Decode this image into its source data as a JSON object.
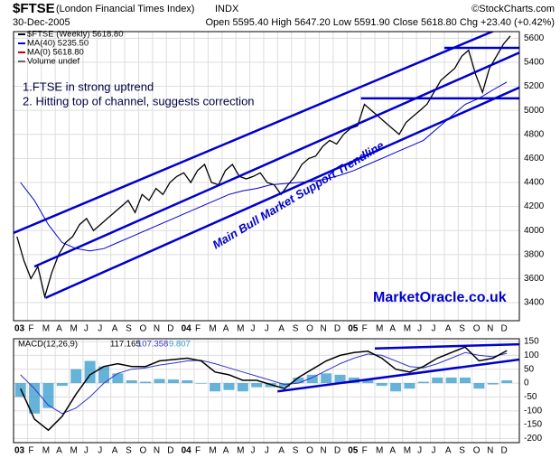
{
  "header": {
    "symbol": "$FTSE",
    "name": "(London Financial Times Index)",
    "exchange": "INDX",
    "copyright": "©StockCharts.com",
    "date": "30-Dec-2005",
    "quote": "Open 5595.40  High 5647.20  Low 5591.90  Close 5618.80  Chg +23.40 (+0.42%)"
  },
  "chart_data": [
    {
      "type": "line",
      "panel": "price",
      "legend": [
        "$FTSE (Weekly) 5618.80",
        "MA(40) 5235.50",
        "MA(0) 5618.80",
        "Volume undef"
      ],
      "annotations": [
        "1.FTSE in strong uptrend",
        "2. Hitting top of channel, suggests correction",
        "Main Bull Market Support Trendline",
        "MarketOracle.co.uk"
      ],
      "xlim": [
        0,
        36.4
      ],
      "ylim": [
        3250,
        5655
      ],
      "yticks": [
        3400,
        3600,
        3800,
        4000,
        4200,
        4400,
        4600,
        4800,
        5000,
        5200,
        5400,
        5600
      ],
      "xticks": [
        {
          "value": 0,
          "label": "03"
        },
        {
          "value": 1,
          "label": "F"
        },
        {
          "value": 2,
          "label": "M"
        },
        {
          "value": 3,
          "label": "A"
        },
        {
          "value": 4,
          "label": "M"
        },
        {
          "value": 5,
          "label": "J"
        },
        {
          "value": 6,
          "label": "J"
        },
        {
          "value": 7,
          "label": "A"
        },
        {
          "value": 8,
          "label": "S"
        },
        {
          "value": 9,
          "label": "O"
        },
        {
          "value": 10,
          "label": "N"
        },
        {
          "value": 11,
          "label": "D"
        },
        {
          "value": 12,
          "label": "04"
        },
        {
          "value": 13,
          "label": "F"
        },
        {
          "value": 14,
          "label": "M"
        },
        {
          "value": 15,
          "label": "A"
        },
        {
          "value": 16,
          "label": "M"
        },
        {
          "value": 17,
          "label": "J"
        },
        {
          "value": 18,
          "label": "J"
        },
        {
          "value": 19,
          "label": "A"
        },
        {
          "value": 20,
          "label": "S"
        },
        {
          "value": 21,
          "label": "O"
        },
        {
          "value": 22,
          "label": "N"
        },
        {
          "value": 23,
          "label": "D"
        },
        {
          "value": 24,
          "label": "05"
        },
        {
          "value": 25,
          "label": "F"
        },
        {
          "value": 26,
          "label": "M"
        },
        {
          "value": 27,
          "label": "A"
        },
        {
          "value": 28,
          "label": "M"
        },
        {
          "value": 29,
          "label": "J"
        },
        {
          "value": 30,
          "label": "J"
        },
        {
          "value": 31,
          "label": "A"
        },
        {
          "value": 32,
          "label": "S"
        },
        {
          "value": 33,
          "label": "O"
        },
        {
          "value": 34,
          "label": "N"
        },
        {
          "value": 35,
          "label": "D"
        }
      ],
      "grid": true,
      "series": [
        {
          "name": "$FTSE",
          "color": "#000000",
          "x": [
            0.25,
            0.75,
            1.25,
            1.75,
            2.25,
            2.75,
            3.25,
            3.75,
            4.25,
            4.75,
            5.25,
            5.75,
            6.25,
            6.75,
            7.25,
            7.75,
            8.25,
            8.75,
            9.25,
            9.75,
            10.25,
            10.75,
            11.25,
            11.75,
            12.25,
            12.75,
            13.25,
            13.75,
            14.25,
            14.75,
            15.25,
            15.75,
            16.25,
            16.75,
            17.25,
            17.75,
            18.25,
            18.75,
            19.25,
            19.75,
            20.25,
            20.75,
            21.25,
            21.75,
            22.25,
            22.75,
            23.25,
            23.75,
            24.25,
            24.75,
            25.25,
            25.75,
            26.25,
            26.75,
            27.25,
            27.75,
            28.25,
            28.75,
            29.25,
            29.75,
            30.25,
            30.75,
            31.25,
            31.75,
            32.25,
            32.75,
            33.25,
            33.75,
            34.25,
            34.75,
            35.25,
            35.75
          ],
          "values": [
            3950,
            3750,
            3600,
            3700,
            3450,
            3650,
            3800,
            3900,
            3950,
            4050,
            4100,
            4000,
            4050,
            4100,
            4150,
            4200,
            4250,
            4150,
            4300,
            4250,
            4350,
            4300,
            4400,
            4450,
            4480,
            4400,
            4500,
            4550,
            4400,
            4380,
            4500,
            4550,
            4450,
            4430,
            4450,
            4480,
            4400,
            4380,
            4300,
            4380,
            4450,
            4550,
            4600,
            4620,
            4700,
            4750,
            4720,
            4800,
            4850,
            4870,
            5050,
            5000,
            4950,
            4900,
            4850,
            4800,
            4900,
            4950,
            5000,
            5050,
            5150,
            5250,
            5300,
            5350,
            5450,
            5500,
            5300,
            5150,
            5350,
            5450,
            5550,
            5618.8
          ]
        },
        {
          "name": "MA(40)",
          "color": "#0000cc",
          "x": [
            0.5,
            1.5,
            2.5,
            3.5,
            4.5,
            5.5,
            6.5,
            7.5,
            8.5,
            9.5,
            10.5,
            11.5,
            12.5,
            13.5,
            14.5,
            15.5,
            16.5,
            17.5,
            18.5,
            19.5,
            20.5,
            21.5,
            22.5,
            23.5,
            24.5,
            25.5,
            26.5,
            27.5,
            28.5,
            29.5,
            30.5,
            31.5,
            32.5,
            33.5,
            34.5,
            35.5
          ],
          "values": [
            4400,
            4250,
            4050,
            3900,
            3850,
            3830,
            3850,
            3900,
            3950,
            4000,
            4050,
            4100,
            4150,
            4200,
            4250,
            4300,
            4330,
            4350,
            4380,
            4390,
            4400,
            4410,
            4430,
            4460,
            4500,
            4550,
            4600,
            4650,
            4700,
            4750,
            4850,
            4950,
            5050,
            5100,
            5170,
            5235.5
          ]
        }
      ],
      "trendlines": [
        {
          "color": "#0000cc",
          "x": [
            0,
            36.4
          ],
          "y": [
            3980,
            5750
          ]
        },
        {
          "color": "#0000cc",
          "x": [
            2.3,
            36.4
          ],
          "y": [
            3440,
            5190
          ]
        },
        {
          "color": "#0000cc",
          "x": [
            1.5,
            36.4
          ],
          "y": [
            3700,
            5480
          ]
        },
        {
          "color": "#0000cc",
          "x": [
            31,
            36.4
          ],
          "y": [
            5520,
            5520
          ]
        },
        {
          "color": "#0000cc",
          "x": [
            25,
            36.4
          ],
          "y": [
            5100,
            5100
          ]
        }
      ]
    },
    {
      "type": "macd",
      "panel": "macd",
      "legend": [
        "MACD(12,26,9)",
        "117.165",
        "107.358",
        "9.807"
      ],
      "xlim": [
        0,
        36.4
      ],
      "ylim": [
        -215,
        160
      ],
      "yticks": [
        -200,
        -150,
        -100,
        -50,
        0,
        50,
        100,
        150
      ],
      "series": [
        {
          "name": "MACD",
          "color": "#000000",
          "values": [
            -20,
            -130,
            -170,
            -120,
            -40,
            30,
            60,
            70,
            60,
            60,
            80,
            85,
            90,
            80,
            40,
            30,
            10,
            10,
            -5,
            -20,
            20,
            50,
            80,
            100,
            110,
            115,
            90,
            50,
            40,
            60,
            90,
            110,
            130,
            80,
            90,
            117.165
          ]
        },
        {
          "name": "Signal",
          "color": "#3333cc",
          "values": [
            30,
            -20,
            -80,
            -110,
            -90,
            -50,
            0,
            35,
            50,
            55,
            65,
            72,
            80,
            82,
            70,
            55,
            40,
            25,
            10,
            -5,
            0,
            20,
            45,
            70,
            90,
            105,
            100,
            80,
            60,
            55,
            70,
            90,
            110,
            100,
            95,
            107.358
          ]
        },
        {
          "name": "Histogram",
          "color": "#3399cc",
          "values": [
            -50,
            -110,
            -90,
            -10,
            50,
            80,
            60,
            35,
            10,
            5,
            15,
            13,
            10,
            -2,
            -30,
            -25,
            -30,
            -15,
            -15,
            -15,
            20,
            30,
            35,
            30,
            20,
            10,
            -10,
            -30,
            -20,
            5,
            20,
            20,
            20,
            -20,
            -5,
            9.807
          ]
        }
      ],
      "trendlines": [
        {
          "color": "#0000cc",
          "x": [
            19,
            36.4
          ],
          "y": [
            -30,
            85
          ]
        },
        {
          "color": "#0000cc",
          "x": [
            26,
            36.4
          ],
          "y": [
            125,
            140
          ]
        }
      ]
    }
  ]
}
